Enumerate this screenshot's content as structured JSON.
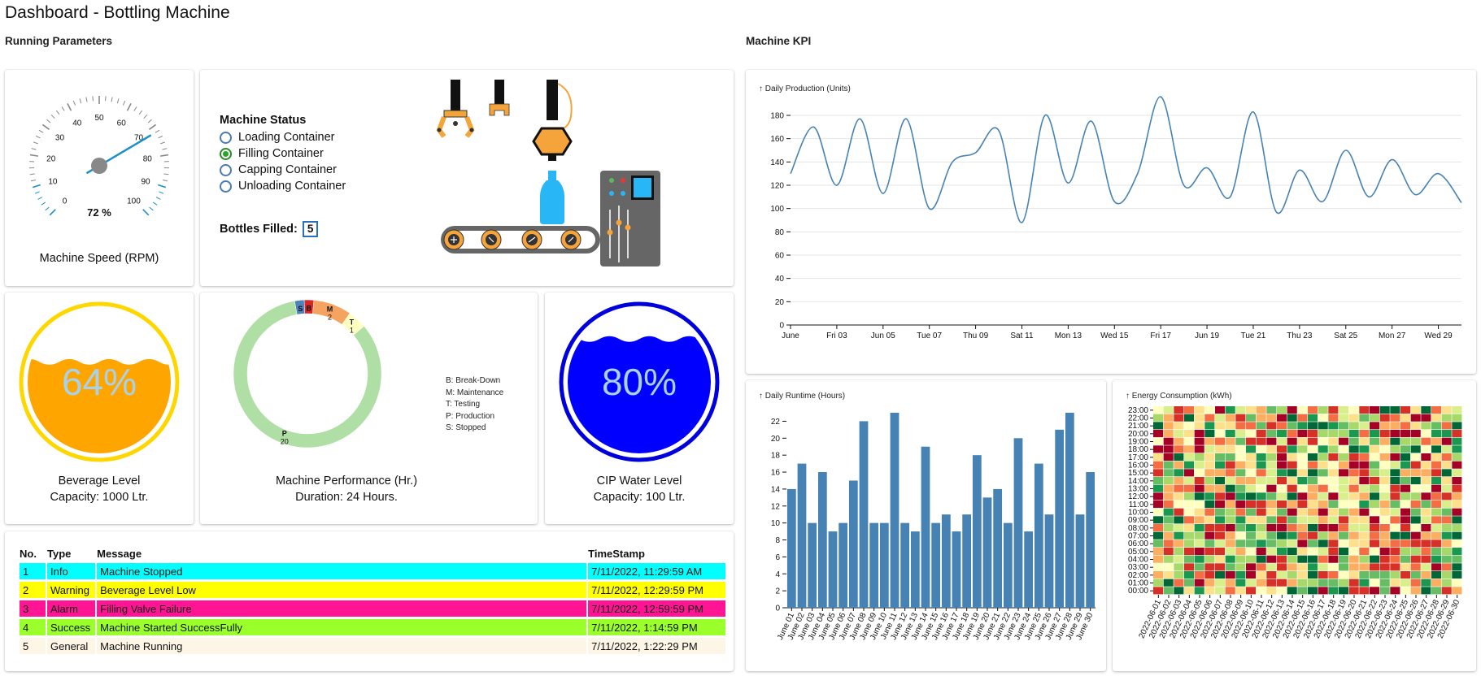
{
  "page": {
    "title": "Dashboard - Bottling Machine"
  },
  "sections": {
    "running": "Running Parameters",
    "kpi": "Machine KPI"
  },
  "speed_gauge": {
    "ticks": [
      "0",
      "10",
      "20",
      "30",
      "40",
      "50",
      "60",
      "70",
      "80",
      "90",
      "100"
    ],
    "value": 72,
    "value_text": "72 %",
    "label": "Machine Speed (RPM)",
    "needle_color": "#1a8fc9"
  },
  "machine_status": {
    "title": "Machine Status",
    "options": [
      {
        "label": "Loading Container",
        "checked": false
      },
      {
        "label": "Filling Container",
        "checked": true
      },
      {
        "label": "Capping Container",
        "checked": false
      },
      {
        "label": "Unloading Container",
        "checked": false
      }
    ],
    "bottles_label": "Bottles Filled:",
    "bottles_value": "5"
  },
  "beverage": {
    "percent": 64,
    "percent_text": "64%",
    "label": "Beverage Level",
    "capacity": "Capacity: 1000 Ltr.",
    "color": "#ffa500",
    "ring": "#ffd700",
    "text_color": "#a8d1ee"
  },
  "performance": {
    "label": "Machine Performance (Hr.)",
    "duration": "Duration: 24 Hours.",
    "legend": [
      "B: Break-Down",
      "M: Maintenance",
      "T: Testing",
      "P: Production",
      "S: Stopped"
    ],
    "slices": [
      {
        "key": "S",
        "value": 0.5,
        "color": "#4f81bd",
        "label": "S",
        "num": ""
      },
      {
        "key": "B",
        "value": 0.5,
        "color": "#d62728",
        "label": "B",
        "num": ""
      },
      {
        "key": "M",
        "value": 2,
        "color": "#f4a460",
        "label": "M",
        "num": "2"
      },
      {
        "key": "T",
        "value": 1,
        "color": "#ffffc0",
        "label": "T",
        "num": "1"
      },
      {
        "key": "P",
        "value": 20,
        "color": "#b0dfa5",
        "label": "P",
        "num": "20"
      }
    ]
  },
  "cip": {
    "percent": 80,
    "percent_text": "80%",
    "label": "CIP Water Level",
    "capacity": "Capacity: 100 Ltr.",
    "color": "#0000ff",
    "ring": "#0000dd",
    "text_color": "#a8d1ee"
  },
  "events": {
    "headers": [
      "No.",
      "Type",
      "Message",
      "TimeStamp"
    ],
    "rows": [
      {
        "no": "1",
        "type": "Info",
        "message": "Machine Stopped",
        "time": "7/11/2022, 11:29:59 AM",
        "color": "#00ffff"
      },
      {
        "no": "2",
        "type": "Warning",
        "message": "Beverage Level Low",
        "time": "7/11/2022, 12:29:59 PM",
        "color": "#ffff00"
      },
      {
        "no": "3",
        "type": "Alarm",
        "message": "Filling Valve Failure",
        "time": "7/11/2022, 12:59:59 PM",
        "color": "#ff1493"
      },
      {
        "no": "4",
        "type": "Success",
        "message": "Machine Started SuccessFully",
        "time": "7/11/2022, 1:14:59 PM",
        "color": "#9aff2a"
      },
      {
        "no": "5",
        "type": "General",
        "message": "Machine Running",
        "time": "7/11/2022, 1:22:29 PM",
        "color": "#fdf5e6"
      }
    ]
  },
  "chart_data": [
    {
      "type": "line",
      "title": "↑ Daily Production (Units)",
      "x_tick_labels": [
        "June",
        "Fri 03",
        "Jun 05",
        "Tue 07",
        "Thu 09",
        "Sat 11",
        "Mon 13",
        "Wed 15",
        "Fri 17",
        "Jun 19",
        "Tue 21",
        "Thu 23",
        "Sat 25",
        "Mon 27",
        "Wed 29"
      ],
      "x": [
        "2022-06-01",
        "2022-06-02",
        "2022-06-03",
        "2022-06-04",
        "2022-06-05",
        "2022-06-06",
        "2022-06-07",
        "2022-06-08",
        "2022-06-09",
        "2022-06-10",
        "2022-06-11",
        "2022-06-12",
        "2022-06-13",
        "2022-06-14",
        "2022-06-15",
        "2022-06-16",
        "2022-06-17",
        "2022-06-18",
        "2022-06-19",
        "2022-06-20",
        "2022-06-21",
        "2022-06-22",
        "2022-06-23",
        "2022-06-24",
        "2022-06-25",
        "2022-06-26",
        "2022-06-27",
        "2022-06-28",
        "2022-06-29",
        "2022-06-30"
      ],
      "values": [
        130,
        170,
        120,
        177,
        113,
        177,
        100,
        140,
        148,
        167,
        88,
        180,
        122,
        175,
        106,
        130,
        196,
        120,
        135,
        110,
        183,
        97,
        133,
        106,
        150,
        110,
        142,
        112,
        130,
        105
      ],
      "ylim": [
        0,
        180
      ],
      "y_ticks": [
        0,
        20,
        40,
        60,
        80,
        100,
        120,
        140,
        160,
        180
      ],
      "color": "#4682b4",
      "grid": true
    },
    {
      "type": "bar",
      "title": "↑ Daily Runtime (Hours)",
      "categories": [
        "June 01",
        "June 02",
        "June 03",
        "June 04",
        "June 05",
        "June 06",
        "June 07",
        "June 08",
        "June 09",
        "June 10",
        "June 11",
        "June 12",
        "June 13",
        "June 14",
        "June 15",
        "June 16",
        "June 17",
        "June 18",
        "June 19",
        "June 20",
        "June 21",
        "June 22",
        "June 23",
        "June 24",
        "June 25",
        "June 26",
        "June 27",
        "June 28",
        "June 29",
        "June 30"
      ],
      "values": [
        14,
        17,
        10,
        16,
        9,
        10,
        15,
        22,
        10,
        10,
        23,
        10,
        9,
        19,
        10,
        11,
        9,
        11,
        18,
        13,
        14,
        10,
        20,
        9,
        17,
        11,
        21,
        23,
        11,
        16
      ],
      "ylim": [
        0,
        23
      ],
      "y_ticks": [
        0,
        2,
        4,
        6,
        8,
        10,
        12,
        14,
        16,
        18,
        20,
        22
      ],
      "color": "#4682b4"
    },
    {
      "type": "heatmap",
      "title": "↑ Energy Consumption (kWh)",
      "y_labels": [
        "23:00",
        "22:00",
        "21:00",
        "20:00",
        "19:00",
        "18:00",
        "17:00",
        "16:00",
        "15:00",
        "14:00",
        "13:00",
        "12:00",
        "11:00",
        "10:00",
        "09:00",
        "08:00",
        "07:00",
        "06:00",
        "05:00",
        "04:00",
        "03:00",
        "02:00",
        "01:00",
        "00:00"
      ],
      "x_labels": [
        "2022-06-01",
        "2022-06-02",
        "2022-06-03",
        "2022-06-04",
        "2022-06-05",
        "2022-06-06",
        "2022-06-07",
        "2022-06-08",
        "2022-06-09",
        "2022-06-10",
        "2022-06-11",
        "2022-06-12",
        "2022-06-13",
        "2022-06-14",
        "2022-06-15",
        "2022-06-16",
        "2022-06-17",
        "2022-06-18",
        "2022-06-19",
        "2022-06-20",
        "2022-06-21",
        "2022-06-22",
        "2022-06-23",
        "2022-06-24",
        "2022-06-25",
        "2022-06-26",
        "2022-06-27",
        "2022-06-28",
        "2022-06-29",
        "2022-06-30"
      ],
      "colors": [
        "#a50026",
        "#d73027",
        "#f46d43",
        "#fdae61",
        "#fee08b",
        "#ffffbf",
        "#d9ef8b",
        "#a6d96a",
        "#66bd63",
        "#1a9850",
        "#006837"
      ]
    }
  ]
}
